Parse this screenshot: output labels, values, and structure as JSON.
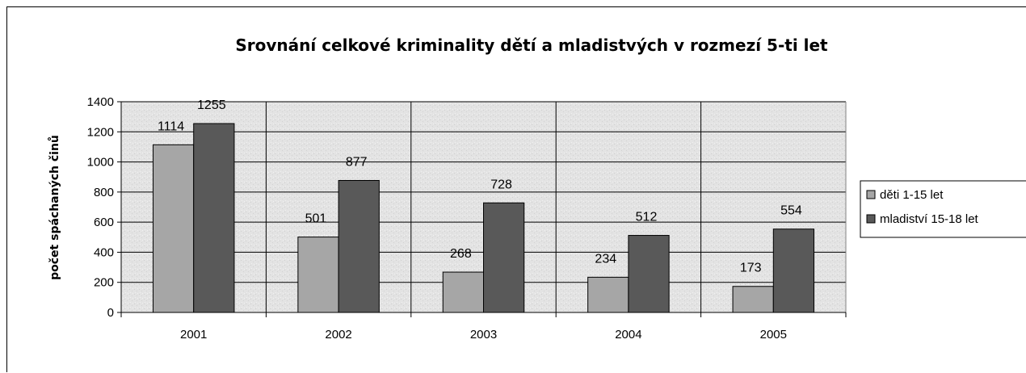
{
  "chart_data": {
    "type": "bar",
    "title": "Srovnání celkové kriminality dětí a mladistvých v rozmezí 5-ti let",
    "xlabel": "",
    "ylabel": "počet spáchaných činů",
    "categories": [
      "2001",
      "2002",
      "2003",
      "2004",
      "2005"
    ],
    "series": [
      {
        "name": "děti 1-15 let",
        "values": [
          1114,
          501,
          268,
          234,
          173
        ],
        "color": "#a6a6a6"
      },
      {
        "name": "mladiství 15-18 let",
        "values": [
          1255,
          877,
          728,
          512,
          554
        ],
        "color": "#595959"
      }
    ],
    "ylim": [
      0,
      1400
    ],
    "yticks": [
      0,
      200,
      400,
      600,
      800,
      1000,
      1200,
      1400
    ],
    "grid": true,
    "legend_position": "right",
    "plot_background": "#e3e3e3"
  }
}
